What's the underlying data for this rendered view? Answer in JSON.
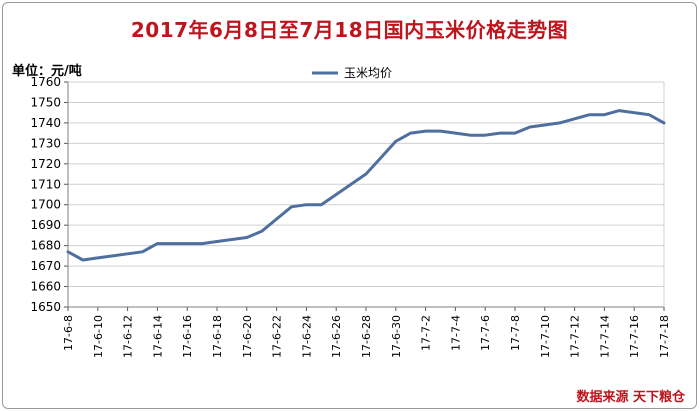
{
  "title": "2017年6月8日至7月18日国内玉米价格走势图",
  "unit_label": "单位：元/吨",
  "source_label": "数据来源 天下粮仓",
  "colors": {
    "title": "#c0141d",
    "line": "#4f6f9e",
    "source": "#c0141d",
    "grid": "#d0d0d0"
  },
  "chart_data": {
    "type": "line",
    "title": "2017年6月8日至7月18日国内玉米价格走势图",
    "ylabel": "单位：元/吨",
    "ylim": [
      1650,
      1760
    ],
    "ytick_step": 10,
    "grid": true,
    "legend_position": "top-center",
    "x": [
      "17-6-8",
      "17-6-9",
      "17-6-10",
      "17-6-11",
      "17-6-12",
      "17-6-13",
      "17-6-14",
      "17-6-15",
      "17-6-16",
      "17-6-17",
      "17-6-18",
      "17-6-19",
      "17-6-20",
      "17-6-21",
      "17-6-22",
      "17-6-23",
      "17-6-24",
      "17-6-25",
      "17-6-26",
      "17-6-27",
      "17-6-28",
      "17-6-29",
      "17-6-30",
      "17-7-1",
      "17-7-2",
      "17-7-3",
      "17-7-4",
      "17-7-5",
      "17-7-6",
      "17-7-7",
      "17-7-8",
      "17-7-9",
      "17-7-10",
      "17-7-11",
      "17-7-12",
      "17-7-13",
      "17-7-14",
      "17-7-15",
      "17-7-16",
      "17-7-17",
      "17-7-18"
    ],
    "x_tick_labels": [
      "17-6-8",
      "17-6-10",
      "17-6-12",
      "17-6-14",
      "17-6-16",
      "17-6-18",
      "17-6-20",
      "17-6-22",
      "17-6-24",
      "17-6-26",
      "17-6-28",
      "17-6-30",
      "17-7-2",
      "17-7-4",
      "17-7-6",
      "17-7-8",
      "17-7-10",
      "17-7-12",
      "17-7-14",
      "17-7-16",
      "17-7-18"
    ],
    "series": [
      {
        "name": "玉米均价",
        "values": [
          1677,
          1673,
          1674,
          1675,
          1676,
          1677,
          1681,
          1681,
          1681,
          1681,
          1682,
          1683,
          1684,
          1687,
          1693,
          1699,
          1700,
          1700,
          1705,
          1710,
          1715,
          1723,
          1731,
          1735,
          1736,
          1736,
          1735,
          1734,
          1734,
          1735,
          1735,
          1738,
          1739,
          1740,
          1742,
          1744,
          1744,
          1746,
          1745,
          1744,
          1740
        ]
      }
    ]
  }
}
